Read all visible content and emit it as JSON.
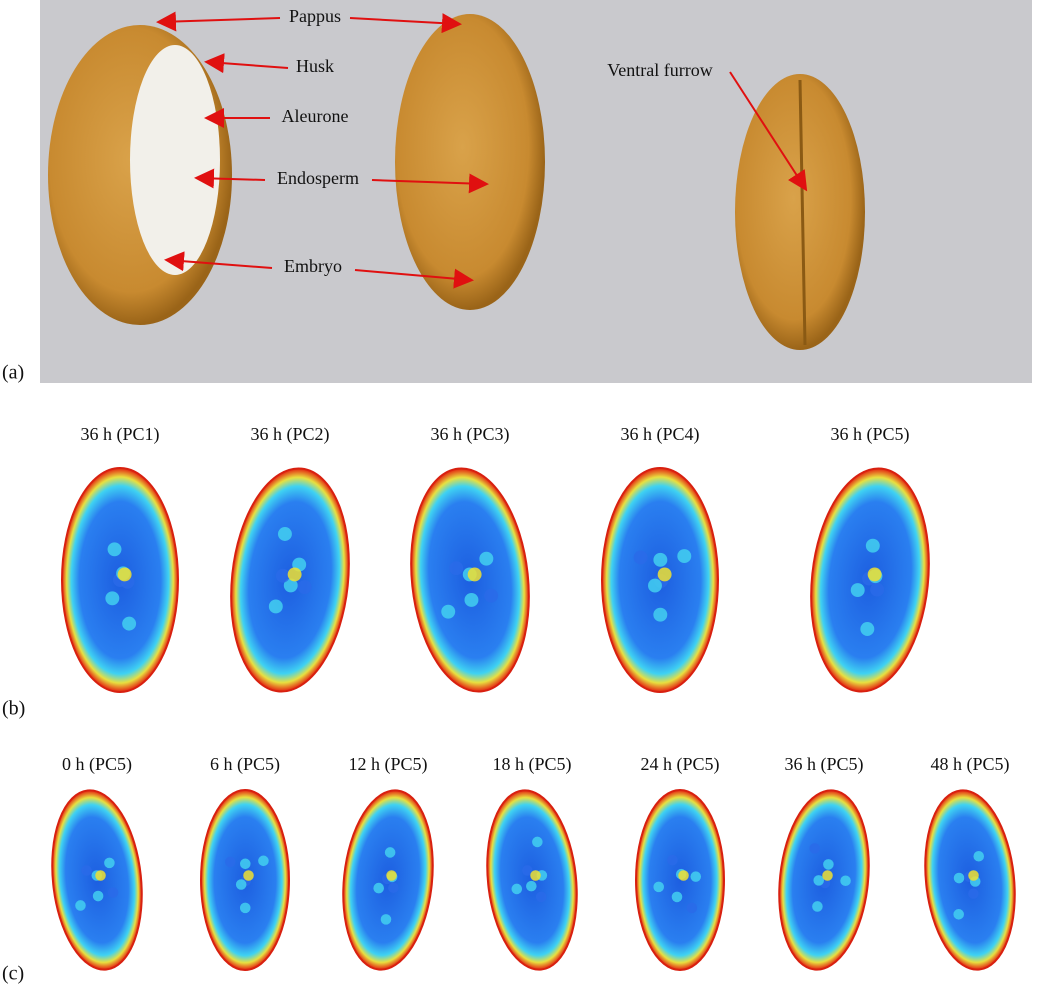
{
  "panel_a": {
    "label": "(a)",
    "annotations": [
      "Pappus",
      "Husk",
      "Aleurone",
      "Endosperm",
      "Embryo",
      "Ventral furrow"
    ]
  },
  "panel_b": {
    "label": "(b)",
    "titles": [
      "36 h (PC1)",
      "36 h (PC2)",
      "36 h (PC3)",
      "36 h (PC4)",
      "36 h (PC5)"
    ]
  },
  "panel_c": {
    "label": "(c)",
    "titles": [
      "0 h (PC5)",
      "6 h (PC5)",
      "12 h (PC5)",
      "18 h (PC5)",
      "24 h (PC5)",
      "36 h (PC5)",
      "48 h (PC5)"
    ]
  }
}
